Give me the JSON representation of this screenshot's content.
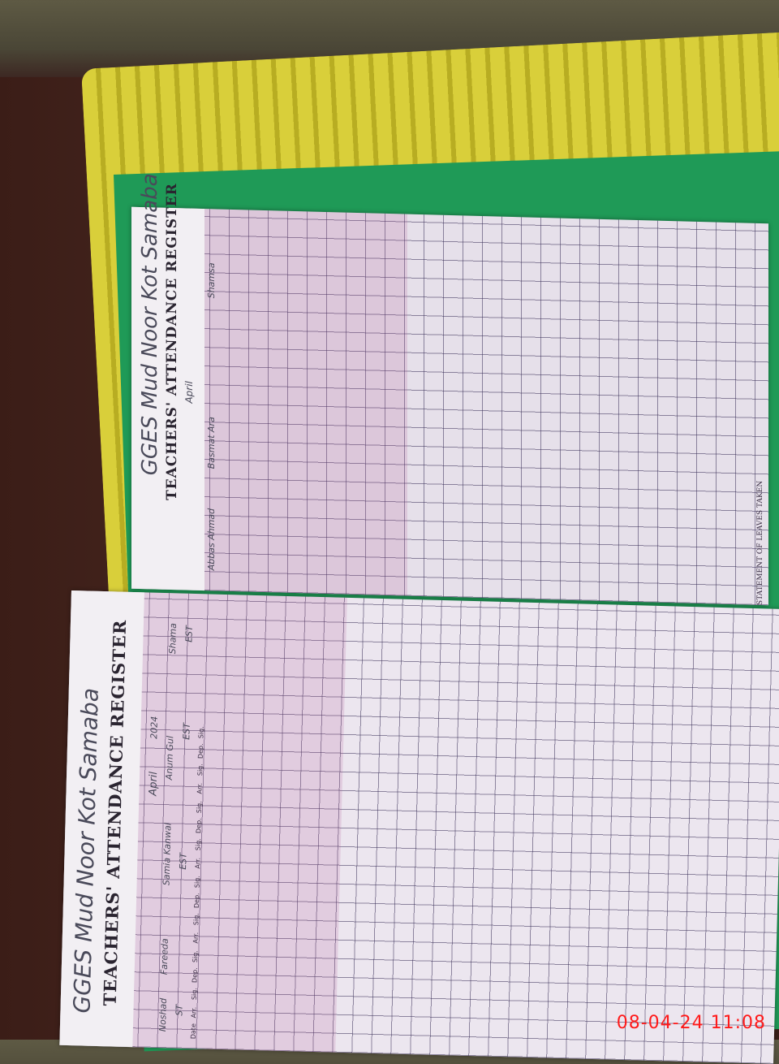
{
  "register": {
    "top_page": {
      "school": "GGES Mud Noor Kot Samaba",
      "title": "TEACHERS' ATTENDANCE REGISTER",
      "month": "April",
      "names": [
        "Abbas Ahmad",
        "Basmat Ara",
        "Shamsa"
      ],
      "side_title": "STATEMENT OF LEAVES TAKEN"
    },
    "bottom_page": {
      "school": "GGES Mud Noor Kot Samaba",
      "title": "TEACHERS' ATTENDANCE REGISTER",
      "month": "April",
      "year": "2024",
      "names": [
        "Noshad",
        "Fareeda",
        "Samia Kanwal",
        "Anum Gul",
        "Shama"
      ],
      "designations": [
        "ST",
        "EST",
        "EST",
        "EST"
      ]
    },
    "column_headers": [
      "Date",
      "Arr.",
      "Sig.",
      "Dep.",
      "Sig.",
      "Arr.",
      "Sig.",
      "Dep.",
      "Sig.",
      "Arr.",
      "Sig.",
      "Dep.",
      "Sig.",
      "Arr.",
      "Sig.",
      "Dep.",
      "Sig."
    ]
  },
  "camera_timestamp": "08-04-24  11:08"
}
